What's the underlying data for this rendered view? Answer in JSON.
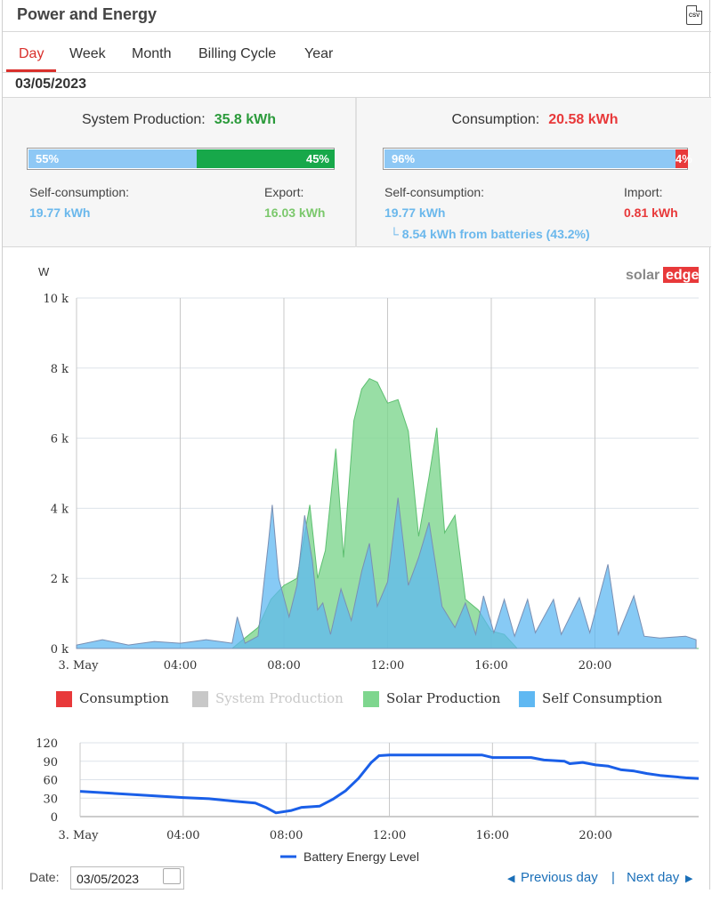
{
  "header": {
    "title": "Power and Energy",
    "csv_icon_label": "CSV"
  },
  "tabs": [
    {
      "label": "Day",
      "active": true
    },
    {
      "label": "Week"
    },
    {
      "label": "Month"
    },
    {
      "label": "Billing Cycle"
    },
    {
      "label": "Year"
    }
  ],
  "date_display": "03/05/2023",
  "production": {
    "label": "System Production:",
    "value": "35.8 kWh",
    "self_pct": 0.55,
    "export_pct": 0.45,
    "self_pct_label": "55%",
    "export_pct_label": "45%",
    "self_label": "Self-consumption:",
    "self_value": "19.77 kWh",
    "export_label": "Export:",
    "export_value": "16.03 kWh"
  },
  "consumption": {
    "label": "Consumption:",
    "value": "20.58 kWh",
    "self_pct": 0.96,
    "import_pct": 0.04,
    "self_pct_label": "96%",
    "import_pct_label": "4%",
    "self_label": "Self-consumption:",
    "self_value": "19.77 kWh",
    "import_label": "Import:",
    "import_value": "0.81 kWh",
    "battery_note": "└ 8.54 kWh from batteries (43.2%)"
  },
  "colors": {
    "green": "#2a9a3a",
    "red": "#e8393a",
    "blue_bar": "#8ec8f5",
    "green_bar": "#17a84a",
    "solar": "#7ed68e",
    "self": "#5fb8f2",
    "consumption": "#e8393a",
    "system": "#c8c8c8",
    "battery": "#1a5fe8"
  },
  "brand": "solaredge",
  "chart_data": [
    {
      "type": "area",
      "ylabel": "W",
      "ylim": [
        0,
        10000
      ],
      "yticks": [
        "0 k",
        "2 k",
        "4 k",
        "6 k",
        "8 k",
        "10 k"
      ],
      "xticks": [
        "3. May",
        "04:00",
        "08:00",
        "12:00",
        "16:00",
        "20:00"
      ],
      "legend": [
        "Consumption",
        "System Production",
        "Solar Production",
        "Self Consumption"
      ],
      "series": [
        {
          "name": "Solar Production",
          "points": [
            [
              0,
              0
            ],
            [
              6,
              0
            ],
            [
              6.5,
              300
            ],
            [
              7,
              600
            ],
            [
              7.5,
              1400
            ],
            [
              8,
              1800
            ],
            [
              8.5,
              2000
            ],
            [
              9,
              4100
            ],
            [
              9.3,
              2000
            ],
            [
              9.6,
              2800
            ],
            [
              10,
              5700
            ],
            [
              10.3,
              2600
            ],
            [
              10.7,
              6500
            ],
            [
              11,
              7400
            ],
            [
              11.3,
              7700
            ],
            [
              11.6,
              7600
            ],
            [
              12,
              7000
            ],
            [
              12.4,
              7100
            ],
            [
              12.8,
              6200
            ],
            [
              13.2,
              3200
            ],
            [
              13.6,
              4900
            ],
            [
              13.9,
              6300
            ],
            [
              14.2,
              3300
            ],
            [
              14.6,
              3800
            ],
            [
              15,
              1400
            ],
            [
              15.5,
              1100
            ],
            [
              16,
              500
            ],
            [
              16.5,
              400
            ],
            [
              17,
              0
            ],
            [
              24,
              0
            ]
          ]
        },
        {
          "name": "Self Consumption",
          "points": [
            [
              0,
              100
            ],
            [
              1,
              250
            ],
            [
              2,
              100
            ],
            [
              3,
              200
            ],
            [
              4,
              150
            ],
            [
              5,
              250
            ],
            [
              6,
              150
            ],
            [
              6.2,
              900
            ],
            [
              6.5,
              150
            ],
            [
              7,
              350
            ],
            [
              7.4,
              3000
            ],
            [
              7.55,
              4100
            ],
            [
              7.8,
              2000
            ],
            [
              8.2,
              900
            ],
            [
              8.5,
              1800
            ],
            [
              8.8,
              3800
            ],
            [
              9.1,
              2500
            ],
            [
              9.3,
              1100
            ],
            [
              9.5,
              1300
            ],
            [
              9.8,
              400
            ],
            [
              10.2,
              1700
            ],
            [
              10.6,
              800
            ],
            [
              11,
              2200
            ],
            [
              11.3,
              3000
            ],
            [
              11.6,
              1200
            ],
            [
              12,
              1900
            ],
            [
              12.4,
              4300
            ],
            [
              12.8,
              1800
            ],
            [
              13.2,
              2600
            ],
            [
              13.6,
              3600
            ],
            [
              14.1,
              1200
            ],
            [
              14.6,
              600
            ],
            [
              15,
              1300
            ],
            [
              15.4,
              400
            ],
            [
              15.7,
              1500
            ],
            [
              16.1,
              450
            ],
            [
              16.5,
              1400
            ],
            [
              16.9,
              350
            ],
            [
              17.4,
              1400
            ],
            [
              17.7,
              450
            ],
            [
              18.4,
              1400
            ],
            [
              18.7,
              400
            ],
            [
              19.4,
              1450
            ],
            [
              19.8,
              450
            ],
            [
              20.5,
              2400
            ],
            [
              20.9,
              400
            ],
            [
              21.5,
              1500
            ],
            [
              21.9,
              350
            ],
            [
              22.5,
              300
            ],
            [
              23.5,
              350
            ],
            [
              23.9,
              250
            ]
          ]
        }
      ]
    },
    {
      "type": "line",
      "ylim": [
        0,
        120
      ],
      "yticks": [
        "0",
        "30",
        "60",
        "90",
        "120"
      ],
      "xticks": [
        "3. May",
        "04:00",
        "08:00",
        "12:00",
        "16:00",
        "20:00"
      ],
      "series": [
        {
          "name": "Battery Energy Level",
          "points": [
            [
              0,
              41
            ],
            [
              2,
              36
            ],
            [
              4,
              31
            ],
            [
              5,
              29
            ],
            [
              6,
              25
            ],
            [
              6.8,
              22
            ],
            [
              7.2,
              15
            ],
            [
              7.6,
              6
            ],
            [
              8.2,
              10
            ],
            [
              8.6,
              15
            ],
            [
              9.3,
              17
            ],
            [
              9.8,
              28
            ],
            [
              10.3,
              42
            ],
            [
              10.8,
              62
            ],
            [
              11.3,
              88
            ],
            [
              11.6,
              99
            ],
            [
              12,
              100
            ],
            [
              13,
              100
            ],
            [
              14,
              100
            ],
            [
              15,
              100
            ],
            [
              15.6,
              100
            ],
            [
              16,
              96
            ],
            [
              16.5,
              96
            ],
            [
              17.5,
              96
            ],
            [
              18,
              92
            ],
            [
              18.8,
              90
            ],
            [
              19,
              86
            ],
            [
              19.5,
              88
            ],
            [
              20,
              84
            ],
            [
              20.5,
              82
            ],
            [
              21,
              76
            ],
            [
              21.5,
              74
            ],
            [
              22,
              70
            ],
            [
              22.5,
              67
            ],
            [
              23,
              65
            ],
            [
              23.5,
              63
            ],
            [
              24,
              62
            ]
          ]
        }
      ]
    }
  ],
  "footer": {
    "date_label": "Date:",
    "date_value": "03/05/2023",
    "prev_label": "Previous day",
    "sep": "|",
    "next_label": "Next day"
  }
}
